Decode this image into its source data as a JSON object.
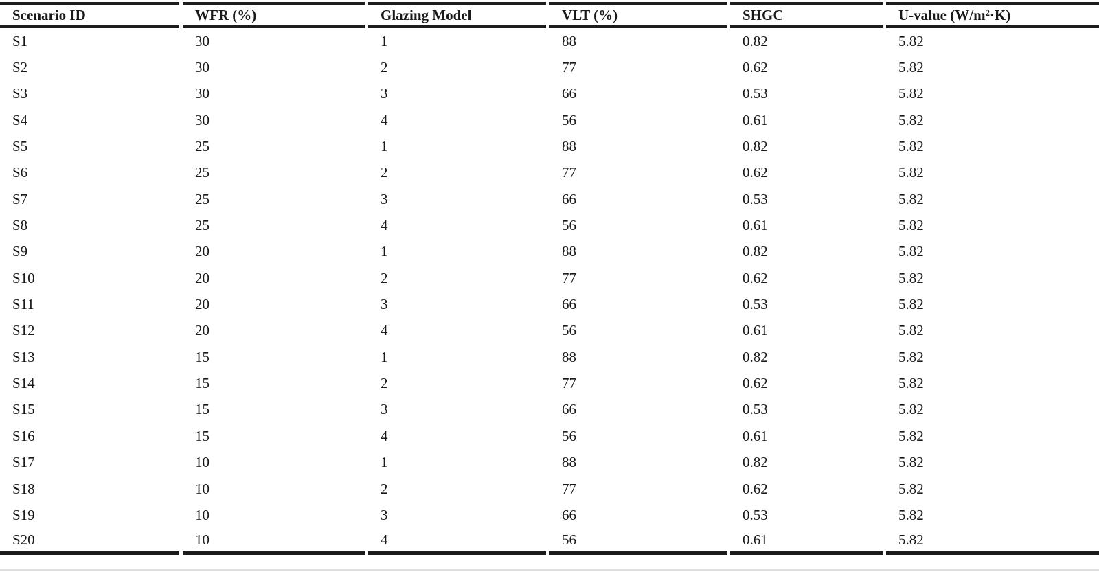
{
  "table": {
    "columns": [
      "Scenario ID",
      "WFR (%)",
      "Glazing Model",
      "VLT (%)",
      "SHGC",
      "U-value (W/m²·K)"
    ],
    "rows": [
      [
        "S1",
        "30",
        "1",
        "88",
        "0.82",
        "5.82"
      ],
      [
        "S2",
        "30",
        "2",
        "77",
        "0.62",
        "5.82"
      ],
      [
        "S3",
        "30",
        "3",
        "66",
        "0.53",
        "5.82"
      ],
      [
        "S4",
        "30",
        "4",
        "56",
        "0.61",
        "5.82"
      ],
      [
        "S5",
        "25",
        "1",
        "88",
        "0.82",
        "5.82"
      ],
      [
        "S6",
        "25",
        "2",
        "77",
        "0.62",
        "5.82"
      ],
      [
        "S7",
        "25",
        "3",
        "66",
        "0.53",
        "5.82"
      ],
      [
        "S8",
        "25",
        "4",
        "56",
        "0.61",
        "5.82"
      ],
      [
        "S9",
        "20",
        "1",
        "88",
        "0.82",
        "5.82"
      ],
      [
        "S10",
        "20",
        "2",
        "77",
        "0.62",
        "5.82"
      ],
      [
        "S11",
        "20",
        "3",
        "66",
        "0.53",
        "5.82"
      ],
      [
        "S12",
        "20",
        "4",
        "56",
        "0.61",
        "5.82"
      ],
      [
        "S13",
        "15",
        "1",
        "88",
        "0.82",
        "5.82"
      ],
      [
        "S14",
        "15",
        "2",
        "77",
        "0.62",
        "5.82"
      ],
      [
        "S15",
        "15",
        "3",
        "66",
        "0.53",
        "5.82"
      ],
      [
        "S16",
        "15",
        "4",
        "56",
        "0.61",
        "5.82"
      ],
      [
        "S17",
        "10",
        "1",
        "88",
        "0.82",
        "5.82"
      ],
      [
        "S18",
        "10",
        "2",
        "77",
        "0.62",
        "5.82"
      ],
      [
        "S19",
        "10",
        "3",
        "66",
        "0.53",
        "5.82"
      ],
      [
        "S20",
        "10",
        "4",
        "56",
        "0.61",
        "5.82"
      ]
    ]
  },
  "chart_data": {
    "type": "table",
    "columns": [
      "Scenario ID",
      "WFR (%)",
      "Glazing Model",
      "VLT (%)",
      "SHGC",
      "U-value (W/m²·K)"
    ],
    "rows": [
      [
        "S1",
        30,
        1,
        88,
        0.82,
        5.82
      ],
      [
        "S2",
        30,
        2,
        77,
        0.62,
        5.82
      ],
      [
        "S3",
        30,
        3,
        66,
        0.53,
        5.82
      ],
      [
        "S4",
        30,
        4,
        56,
        0.61,
        5.82
      ],
      [
        "S5",
        25,
        1,
        88,
        0.82,
        5.82
      ],
      [
        "S6",
        25,
        2,
        77,
        0.62,
        5.82
      ],
      [
        "S7",
        25,
        3,
        66,
        0.53,
        5.82
      ],
      [
        "S8",
        25,
        4,
        56,
        0.61,
        5.82
      ],
      [
        "S9",
        20,
        1,
        88,
        0.82,
        5.82
      ],
      [
        "S10",
        20,
        2,
        77,
        0.62,
        5.82
      ],
      [
        "S11",
        20,
        3,
        66,
        0.53,
        5.82
      ],
      [
        "S12",
        20,
        4,
        56,
        0.61,
        5.82
      ],
      [
        "S13",
        15,
        1,
        88,
        0.82,
        5.82
      ],
      [
        "S14",
        15,
        2,
        77,
        0.62,
        5.82
      ],
      [
        "S15",
        15,
        3,
        66,
        0.53,
        5.82
      ],
      [
        "S16",
        15,
        4,
        56,
        0.61,
        5.82
      ],
      [
        "S17",
        10,
        1,
        88,
        0.82,
        5.82
      ],
      [
        "S18",
        10,
        2,
        77,
        0.62,
        5.82
      ],
      [
        "S19",
        10,
        3,
        66,
        0.53,
        5.82
      ],
      [
        "S20",
        10,
        4,
        56,
        0.61,
        5.82
      ]
    ]
  },
  "colors": {
    "text": "#1a1a1a",
    "rule": "#1c1c1c",
    "background": "#ffffff"
  }
}
